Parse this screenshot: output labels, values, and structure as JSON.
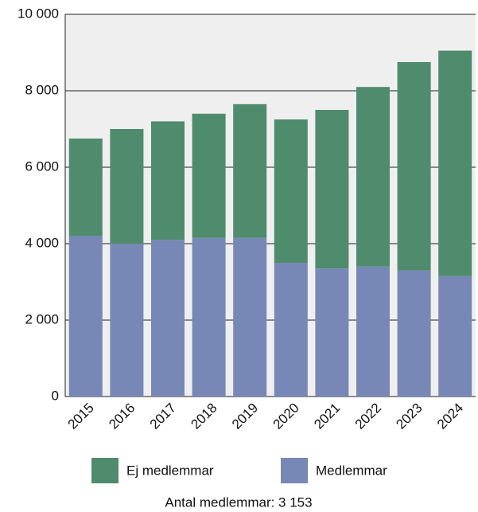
{
  "chart_data": {
    "type": "stacked_bar",
    "categories": [
      "2015",
      "2016",
      "2017",
      "2018",
      "2019",
      "2020",
      "2021",
      "2022",
      "2023",
      "2024"
    ],
    "series": [
      {
        "name": "Ej medlemmar",
        "color": "#4f8b6d",
        "values": [
          2550,
          3000,
          3100,
          3250,
          3500,
          3750,
          4150,
          4700,
          5450,
          5900
        ]
      },
      {
        "name": "Medlemmar",
        "color": "#7788b6",
        "values": [
          4200,
          4000,
          4100,
          4150,
          4150,
          3500,
          3350,
          3400,
          3300,
          3150
        ]
      }
    ],
    "ylim": [
      0,
      10000
    ],
    "yticks": [
      0,
      {
        "value": 2000,
        "label": "2 000"
      },
      {
        "value": 4000,
        "label": "4 000"
      },
      {
        "value": 6000,
        "label": "6 000"
      },
      {
        "value": 8000,
        "label": "8 000"
      },
      {
        "value": 10000,
        "label": "10 000"
      }
    ],
    "grid": true,
    "footnote": "Antal medlemmar: 3 153"
  }
}
